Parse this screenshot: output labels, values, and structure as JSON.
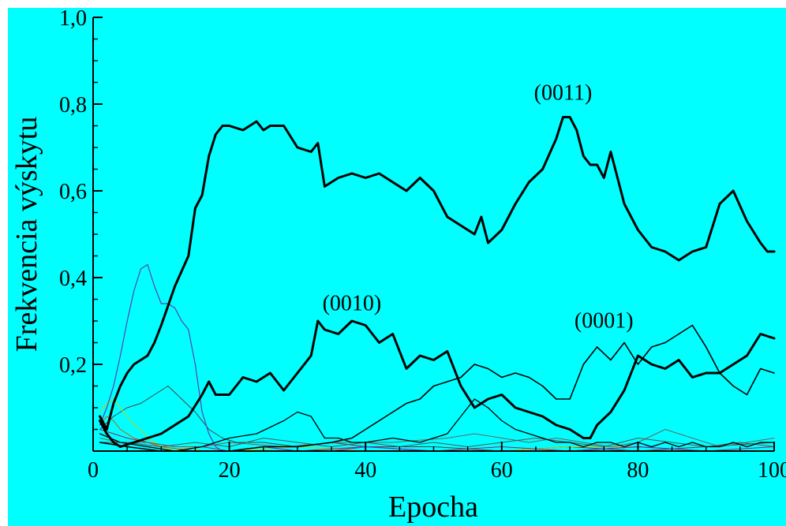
{
  "chart_data": {
    "type": "line",
    "xlabel": "Epocha",
    "ylabel": "Frekvencia výskytu",
    "xlim": [
      0,
      100
    ],
    "ylim": [
      0,
      1.0
    ],
    "x_ticks": [
      0,
      20,
      40,
      60,
      80,
      100
    ],
    "x_tick_labels": [
      "0",
      "20",
      "40",
      "60",
      "80",
      "100"
    ],
    "y_ticks": [
      0.2,
      0.4,
      0.6,
      0.8,
      1.0
    ],
    "y_tick_labels": [
      "0,2",
      "0,4",
      "0,6",
      "0,8",
      "1,0"
    ],
    "grid": false,
    "background": "#00ffff",
    "annotations": [
      {
        "text": "(0011)",
        "x": 69,
        "y": 0.81
      },
      {
        "text": "(0010)",
        "x": 38,
        "y": 0.325
      },
      {
        "text": "(0001)",
        "x": 75,
        "y": 0.285
      }
    ],
    "series": [
      {
        "name": "(0011)",
        "color": "#000000",
        "width": 3,
        "x": [
          1,
          2,
          3,
          4,
          5,
          6,
          7,
          8,
          9,
          10,
          12,
          14,
          15,
          16,
          17,
          18,
          19,
          20,
          22,
          24,
          25,
          26,
          28,
          30,
          32,
          33,
          34,
          35,
          36,
          38,
          40,
          42,
          44,
          46,
          48,
          50,
          52,
          54,
          56,
          57,
          58,
          60,
          62,
          64,
          66,
          68,
          69,
          70,
          71,
          72,
          73,
          74,
          75,
          76,
          78,
          80,
          82,
          84,
          86,
          88,
          90,
          92,
          94,
          96,
          98,
          99,
          100
        ],
        "y": [
          0.08,
          0.05,
          0.11,
          0.15,
          0.18,
          0.2,
          0.21,
          0.22,
          0.25,
          0.29,
          0.38,
          0.45,
          0.56,
          0.59,
          0.68,
          0.73,
          0.75,
          0.75,
          0.74,
          0.76,
          0.74,
          0.75,
          0.75,
          0.7,
          0.69,
          0.71,
          0.61,
          0.62,
          0.63,
          0.64,
          0.63,
          0.64,
          0.62,
          0.6,
          0.63,
          0.6,
          0.54,
          0.52,
          0.5,
          0.54,
          0.48,
          0.51,
          0.57,
          0.62,
          0.65,
          0.72,
          0.77,
          0.77,
          0.74,
          0.68,
          0.66,
          0.66,
          0.63,
          0.69,
          0.57,
          0.51,
          0.47,
          0.46,
          0.44,
          0.46,
          0.47,
          0.57,
          0.6,
          0.53,
          0.48,
          0.46,
          0.46
        ]
      },
      {
        "name": "(0010)",
        "color": "#000000",
        "width": 3,
        "x": [
          1,
          2,
          3,
          4,
          6,
          8,
          10,
          12,
          14,
          16,
          17,
          18,
          20,
          22,
          24,
          26,
          28,
          30,
          32,
          33,
          34,
          36,
          38,
          40,
          42,
          44,
          46,
          48,
          50,
          52,
          54,
          56,
          58,
          60,
          62,
          64,
          66,
          68,
          70,
          72,
          73,
          74,
          76,
          78,
          80,
          82,
          84,
          86,
          88,
          90,
          92,
          94,
          96,
          98,
          100
        ],
        "y": [
          0.07,
          0.04,
          0.02,
          0.01,
          0.02,
          0.03,
          0.04,
          0.06,
          0.08,
          0.13,
          0.16,
          0.13,
          0.13,
          0.17,
          0.16,
          0.18,
          0.14,
          0.18,
          0.22,
          0.3,
          0.28,
          0.27,
          0.3,
          0.29,
          0.25,
          0.27,
          0.19,
          0.22,
          0.21,
          0.23,
          0.15,
          0.1,
          0.12,
          0.13,
          0.1,
          0.09,
          0.08,
          0.06,
          0.05,
          0.03,
          0.03,
          0.06,
          0.09,
          0.14,
          0.22,
          0.2,
          0.19,
          0.21,
          0.17,
          0.18,
          0.18,
          0.2,
          0.22,
          0.27,
          0.26
        ]
      },
      {
        "name": "(0001)",
        "color": "#000000",
        "width": 1.6,
        "x": [
          1,
          5,
          10,
          15,
          20,
          25,
          30,
          35,
          38,
          40,
          42,
          44,
          46,
          48,
          50,
          52,
          54,
          56,
          58,
          60,
          62,
          64,
          66,
          68,
          70,
          72,
          74,
          76,
          78,
          80,
          82,
          84,
          86,
          88,
          90,
          92,
          94,
          96,
          98,
          100
        ],
        "y": [
          0.02,
          0.01,
          0.0,
          0.0,
          0.0,
          0.01,
          0.01,
          0.02,
          0.03,
          0.05,
          0.07,
          0.09,
          0.11,
          0.12,
          0.15,
          0.16,
          0.17,
          0.2,
          0.19,
          0.17,
          0.18,
          0.17,
          0.15,
          0.12,
          0.12,
          0.2,
          0.24,
          0.21,
          0.25,
          0.2,
          0.24,
          0.25,
          0.27,
          0.29,
          0.24,
          0.18,
          0.15,
          0.13,
          0.19,
          0.18
        ]
      },
      {
        "name": "",
        "color": "#000000",
        "width": 1.3,
        "x": [
          1,
          4,
          8,
          12,
          16,
          20,
          24,
          28,
          30,
          32,
          34,
          36,
          38,
          40,
          44,
          48,
          52,
          54,
          56,
          58,
          60,
          62,
          64,
          66,
          68,
          70,
          72,
          74,
          76,
          78,
          80,
          82,
          84,
          86,
          88,
          90,
          92,
          94,
          96,
          98,
          100
        ],
        "y": [
          0.04,
          0.02,
          0.01,
          0.0,
          0.01,
          0.03,
          0.04,
          0.07,
          0.09,
          0.08,
          0.03,
          0.03,
          0.02,
          0.02,
          0.03,
          0.02,
          0.04,
          0.08,
          0.12,
          0.1,
          0.07,
          0.05,
          0.04,
          0.03,
          0.02,
          0.02,
          0.01,
          0.02,
          0.02,
          0.01,
          0.02,
          0.01,
          0.02,
          0.01,
          0.02,
          0.01,
          0.01,
          0.02,
          0.01,
          0.02,
          0.02
        ]
      },
      {
        "name": "",
        "color": "#5a3fb0",
        "width": 1.2,
        "x": [
          1,
          2,
          3,
          4,
          5,
          6,
          7,
          8,
          9,
          10,
          11,
          12,
          13,
          14,
          15,
          16,
          17,
          18,
          19,
          20,
          25,
          30,
          35,
          40,
          50,
          60,
          70,
          80,
          90,
          100
        ],
        "y": [
          0.06,
          0.1,
          0.15,
          0.22,
          0.3,
          0.37,
          0.42,
          0.43,
          0.38,
          0.34,
          0.34,
          0.33,
          0.3,
          0.28,
          0.2,
          0.09,
          0.04,
          0.01,
          0.0,
          0.0,
          0.01,
          0.0,
          0.0,
          0.01,
          0.0,
          0.0,
          0.0,
          0.01,
          0.0,
          0.0
        ]
      },
      {
        "name": "",
        "color": "#444444",
        "width": 1,
        "x": [
          1,
          3,
          5,
          7,
          9,
          11,
          13,
          15,
          17,
          19,
          21,
          25,
          30,
          35,
          40,
          50,
          60,
          70,
          80,
          90,
          100
        ],
        "y": [
          0.05,
          0.08,
          0.1,
          0.11,
          0.13,
          0.15,
          0.12,
          0.09,
          0.05,
          0.03,
          0.02,
          0.02,
          0.01,
          0.02,
          0.01,
          0.01,
          0.0,
          0.01,
          0.0,
          0.01,
          0.02
        ]
      },
      {
        "name": "",
        "color": "#cccc00",
        "width": 1,
        "x": [
          1,
          2,
          3,
          4,
          5,
          6,
          7,
          8,
          10,
          12,
          14,
          16,
          20,
          30,
          40,
          50,
          60,
          70,
          80,
          90,
          100
        ],
        "y": [
          0.09,
          0.11,
          0.12,
          0.1,
          0.08,
          0.06,
          0.05,
          0.03,
          0.01,
          0.0,
          0.01,
          0.0,
          0.0,
          0.01,
          0.0,
          0.0,
          0.0,
          0.01,
          0.01,
          0.0,
          0.0
        ]
      },
      {
        "name": "",
        "color": "#cc5500",
        "width": 1,
        "x": [
          1,
          2,
          3,
          4,
          6,
          8,
          10,
          15,
          20,
          30,
          40,
          50,
          60,
          70,
          80,
          90,
          100
        ],
        "y": [
          0.06,
          0.08,
          0.07,
          0.05,
          0.03,
          0.02,
          0.01,
          0.0,
          0.0,
          0.0,
          0.0,
          0.0,
          0.0,
          0.0,
          0.0,
          0.0,
          0.0
        ]
      },
      {
        "name": "",
        "color": "#8a2a6a",
        "width": 1,
        "x": [
          1,
          3,
          5,
          8,
          12,
          16,
          20,
          30,
          40,
          50,
          60,
          70,
          80,
          90,
          100
        ],
        "y": [
          0.05,
          0.04,
          0.03,
          0.02,
          0.01,
          0.01,
          0.0,
          0.0,
          0.01,
          0.0,
          0.01,
          0.0,
          0.01,
          0.0,
          0.01
        ]
      },
      {
        "name": "",
        "color": "#666666",
        "width": 1,
        "x": [
          1,
          4,
          8,
          12,
          16,
          20,
          28,
          36,
          44,
          52,
          56,
          60,
          64,
          68,
          72,
          76,
          80,
          84,
          88,
          92,
          96,
          100
        ],
        "y": [
          0.03,
          0.02,
          0.02,
          0.01,
          0.01,
          0.02,
          0.01,
          0.02,
          0.02,
          0.03,
          0.04,
          0.03,
          0.02,
          0.03,
          0.02,
          0.01,
          0.02,
          0.05,
          0.03,
          0.01,
          0.02,
          0.03
        ]
      },
      {
        "name": "",
        "color": "#555555",
        "width": 1,
        "x": [
          1,
          5,
          10,
          15,
          20,
          25,
          30,
          35,
          40,
          45,
          50,
          55,
          60,
          65,
          70,
          75,
          80,
          85,
          90,
          95,
          100
        ],
        "y": [
          0.02,
          0.02,
          0.01,
          0.02,
          0.01,
          0.03,
          0.02,
          0.01,
          0.02,
          0.01,
          0.02,
          0.01,
          0.02,
          0.03,
          0.02,
          0.01,
          0.03,
          0.02,
          0.01,
          0.02,
          0.01
        ]
      }
    ]
  }
}
